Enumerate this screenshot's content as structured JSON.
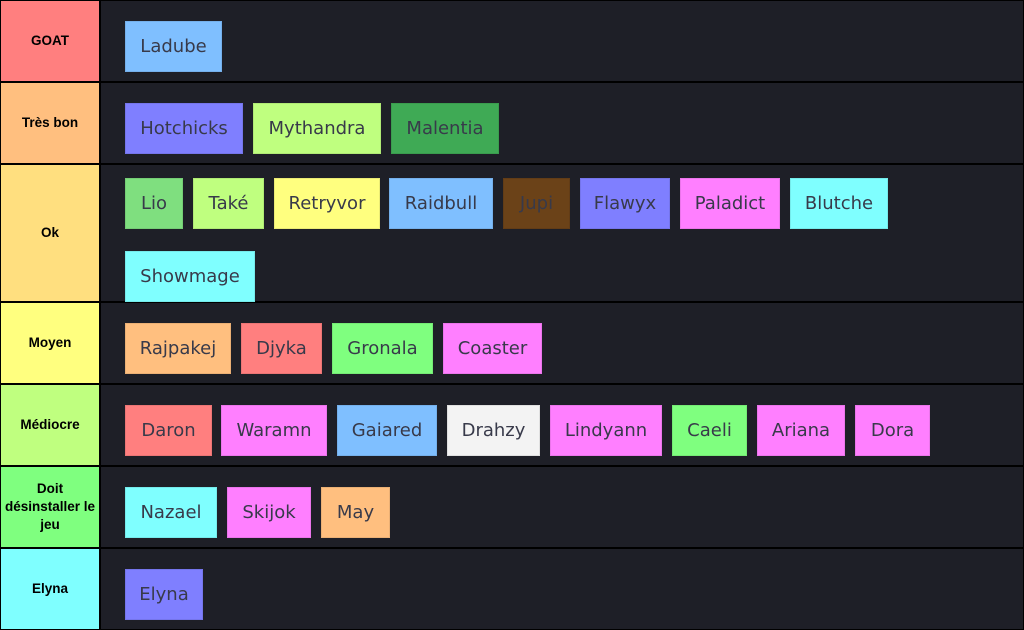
{
  "tiers": [
    {
      "label": "GOAT",
      "color": "#ff7f7f",
      "items": [
        {
          "name": "Ladube",
          "color": "#7fbfff"
        }
      ]
    },
    {
      "label": "Très bon",
      "color": "#ffbf7f",
      "items": [
        {
          "name": "Hotchicks",
          "color": "#7f7fff"
        },
        {
          "name": "Mythandra",
          "color": "#bfff7f"
        },
        {
          "name": "Malentia",
          "color": "#3faa55"
        }
      ]
    },
    {
      "label": "Ok",
      "color": "#ffdf7f",
      "items": [
        {
          "name": "Lio",
          "color": "#7fdf7f"
        },
        {
          "name": "Také",
          "color": "#bfff7f"
        },
        {
          "name": "Retryvor",
          "color": "#ffff7f"
        },
        {
          "name": "Raidbull",
          "color": "#7fbfff"
        },
        {
          "name": "Jupi",
          "color": "#6b4218"
        },
        {
          "name": "Flawyx",
          "color": "#7f7fff"
        },
        {
          "name": "Paladict",
          "color": "#ff7fff"
        },
        {
          "name": "Blutche",
          "color": "#7fffff"
        },
        {
          "name": "Showmage",
          "color": "#7fffff"
        }
      ]
    },
    {
      "label": "Moyen",
      "color": "#ffff7f",
      "items": [
        {
          "name": "Rajpakej",
          "color": "#ffbf7f"
        },
        {
          "name": "Djyka",
          "color": "#ff7f7f"
        },
        {
          "name": "Gronala",
          "color": "#7fff7f"
        },
        {
          "name": "Coaster",
          "color": "#ff7fff"
        }
      ]
    },
    {
      "label": "Médiocre",
      "color": "#bfff7f",
      "items": [
        {
          "name": "Daron",
          "color": "#ff7f7f"
        },
        {
          "name": "Waramn",
          "color": "#ff7fff"
        },
        {
          "name": "Gaiared",
          "color": "#7fbfff"
        },
        {
          "name": "Drahzy",
          "color": "#f3f3f3"
        },
        {
          "name": "Lindyann",
          "color": "#ff7fff"
        },
        {
          "name": "Caeli",
          "color": "#7fff7f"
        },
        {
          "name": "Ariana",
          "color": "#ff7fff"
        },
        {
          "name": "Dora",
          "color": "#ff7fff"
        }
      ]
    },
    {
      "label": "Doit désinstaller le jeu",
      "color": "#7fff7f",
      "items": [
        {
          "name": "Nazael",
          "color": "#7fffff"
        },
        {
          "name": "Skijok",
          "color": "#ff7fff"
        },
        {
          "name": "May",
          "color": "#ffbf7f"
        }
      ]
    },
    {
      "label": "Elyna",
      "color": "#7fffff",
      "items": [
        {
          "name": "Elyna",
          "color": "#7f7fff"
        }
      ]
    }
  ]
}
